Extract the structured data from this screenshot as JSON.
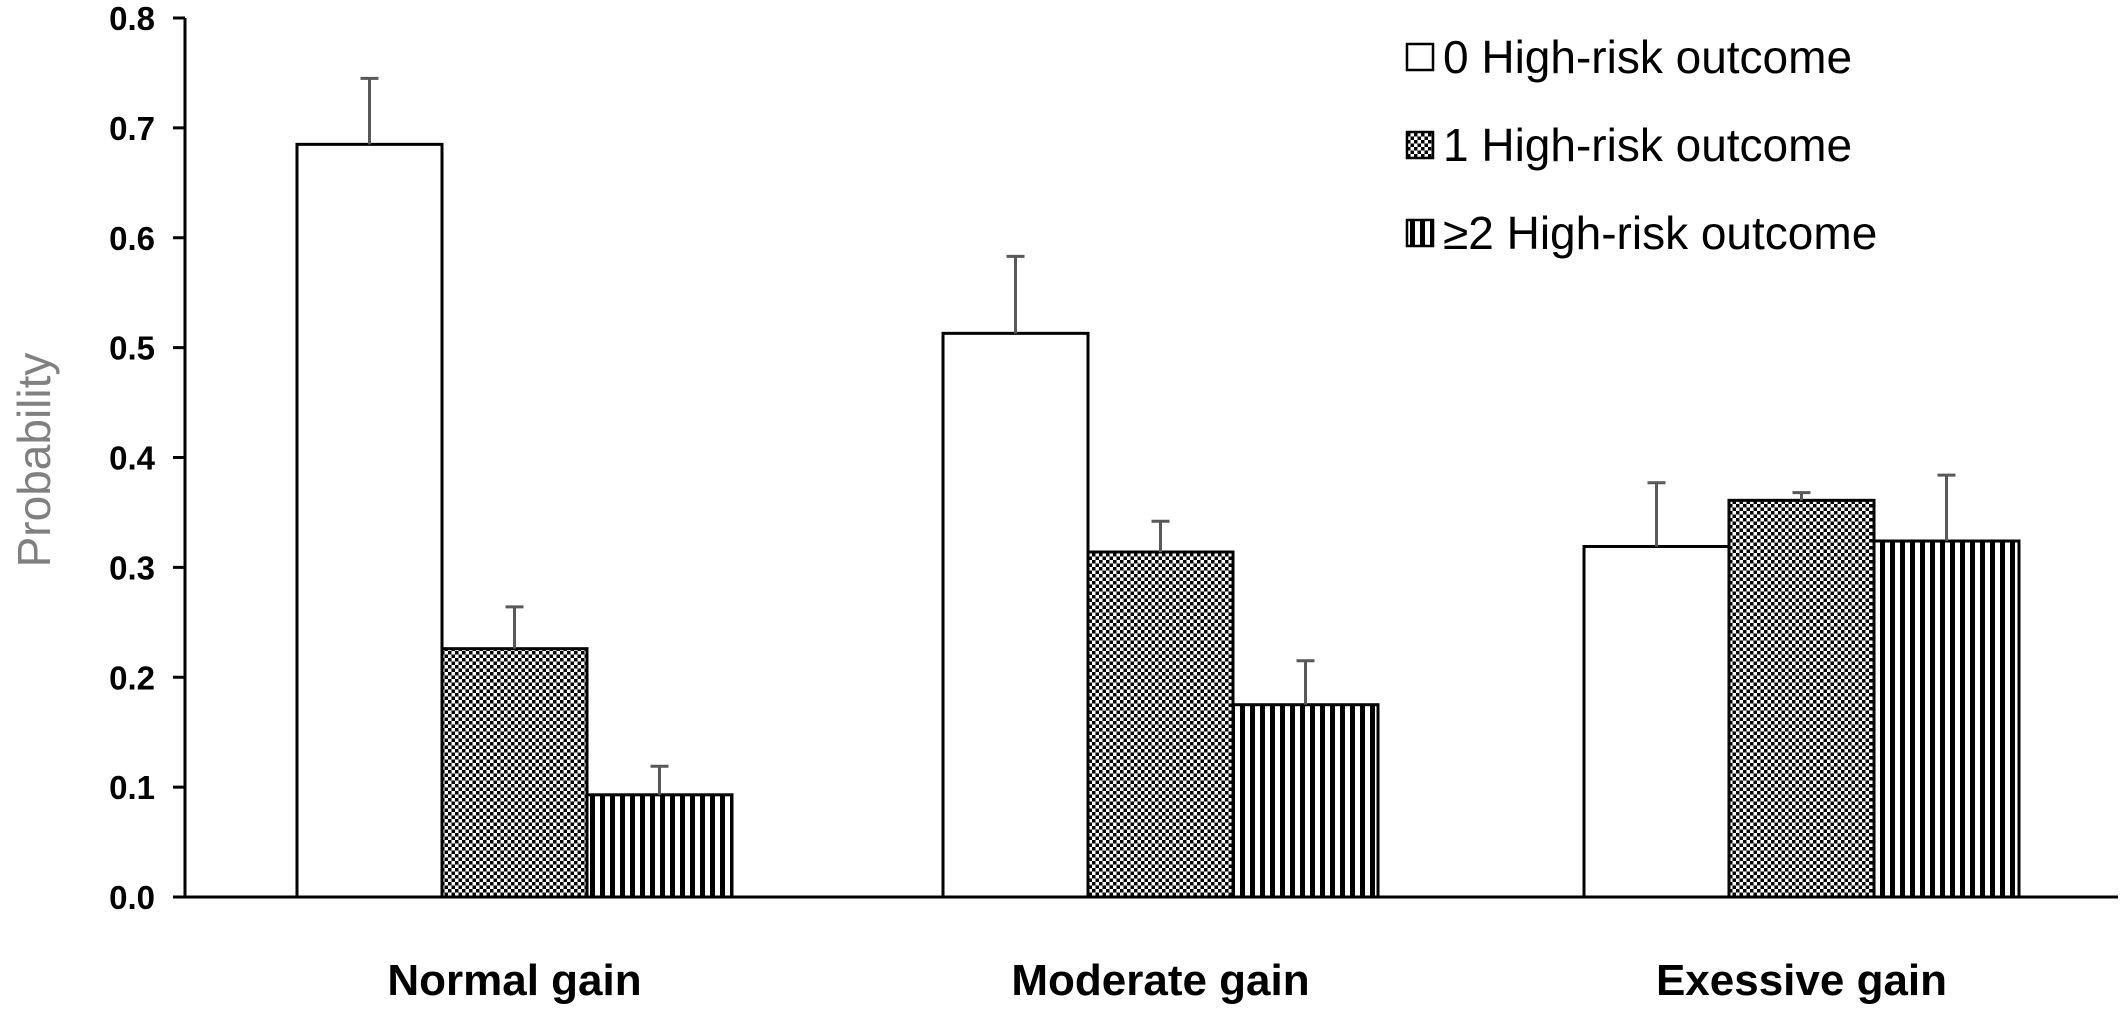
{
  "chart_data": {
    "type": "bar",
    "title": "",
    "xlabel": "",
    "ylabel": "Probability",
    "ylim": [
      0,
      0.8
    ],
    "yticks": [
      "0.0",
      "0.1",
      "0.2",
      "0.3",
      "0.4",
      "0.5",
      "0.6",
      "0.7",
      "0.8"
    ],
    "categories": [
      "Normal gain",
      "Moderate gain",
      "Exessive gain"
    ],
    "grid": false,
    "legend_position": "top-right",
    "series": [
      {
        "name": "0 High-risk outcome",
        "pattern": "none",
        "values": [
          0.685,
          0.513,
          0.319
        ],
        "errors": [
          0.06,
          0.07,
          0.058
        ]
      },
      {
        "name": "1 High-risk outcome",
        "pattern": "dots",
        "values": [
          0.226,
          0.314,
          0.361
        ],
        "errors": [
          0.038,
          0.028,
          0.007
        ]
      },
      {
        "name": "≥2 High-risk outcome",
        "pattern": "vertical-stripes",
        "values": [
          0.093,
          0.175,
          0.324
        ],
        "errors": [
          0.026,
          0.04,
          0.06
        ]
      }
    ],
    "colors": {
      "bar_stroke": "#000000",
      "bar_fill": "#ffffff",
      "pattern": "#000000",
      "error_bar": "#595959",
      "axis": "#000000",
      "ylabel": "#808080"
    }
  }
}
